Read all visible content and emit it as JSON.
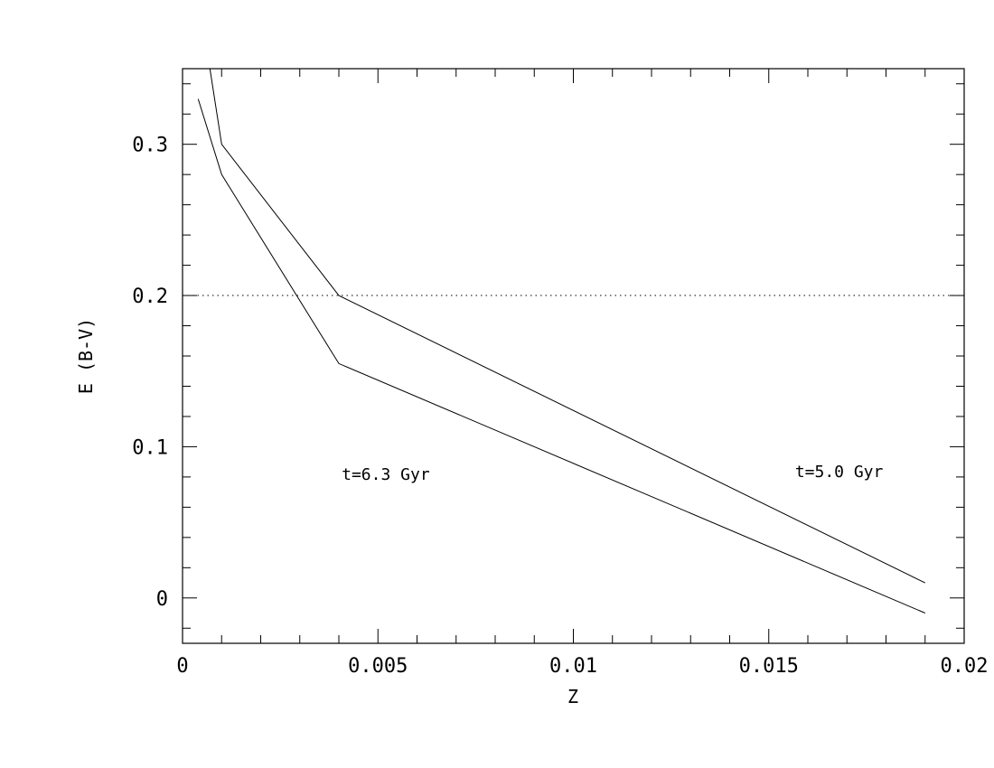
{
  "chart_data": {
    "type": "line",
    "title": "",
    "xlabel": "Z",
    "ylabel": "E (B-V)",
    "xlim": [
      0,
      0.02
    ],
    "ylim": [
      -0.03,
      0.35
    ],
    "x_major_ticks": [
      0,
      0.005,
      0.01,
      0.015,
      0.02
    ],
    "x_tick_labels": [
      "0",
      "0.005",
      "0.01",
      "0.015",
      "0.02"
    ],
    "x_minor_step": 0.001,
    "y_major_ticks": [
      0,
      0.1,
      0.2,
      0.3
    ],
    "y_tick_labels": [
      "0",
      "0.1",
      "0.2",
      "0.3"
    ],
    "y_minor_step": 0.02,
    "grid": false,
    "series": [
      {
        "name": "t=5.0 Gyr",
        "points": [
          [
            0.0007,
            0.35
          ],
          [
            0.001,
            0.3
          ],
          [
            0.004,
            0.2
          ],
          [
            0.019,
            0.01
          ]
        ]
      },
      {
        "name": "t=6.3 Gyr",
        "points": [
          [
            0.0004,
            0.33
          ],
          [
            0.001,
            0.28
          ],
          [
            0.004,
            0.155
          ],
          [
            0.019,
            -0.01
          ]
        ]
      }
    ],
    "reference_lines": [
      {
        "orientation": "horizontal",
        "y": 0.2,
        "style": "dotted"
      }
    ],
    "annotations": [
      {
        "text": "t=6.3 Gyr",
        "x": 0.0052,
        "y": 0.078
      },
      {
        "text": "t=5.0 Gyr",
        "x": 0.0168,
        "y": 0.08
      }
    ]
  }
}
